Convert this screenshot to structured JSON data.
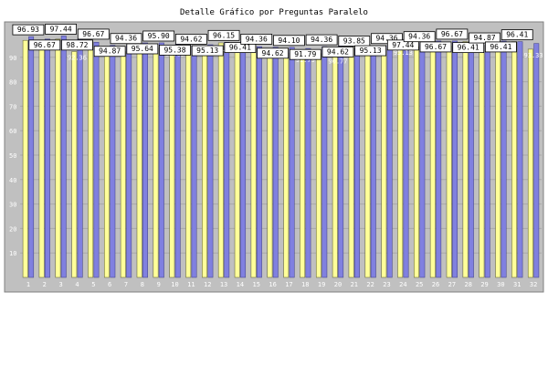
{
  "chart_data": {
    "type": "bar",
    "title": "Detalle Gráfico por Preguntas Paralelo",
    "xlabel": "",
    "ylabel": "",
    "ylim": [
      0,
      100
    ],
    "yticks": [
      10,
      20,
      30,
      40,
      50,
      60,
      70,
      80,
      90
    ],
    "grid": true,
    "legend": "none",
    "colors": {
      "background": "#c0c0c0",
      "bar_yellow": "#ffff99",
      "bar_blue": "#8080e0",
      "tick_text": "#ffffff",
      "label_box": "#ffffff",
      "label_text": "#000000"
    },
    "categories": [
      "1",
      "2",
      "3",
      "4",
      "5",
      "6",
      "7",
      "8",
      "9",
      "10",
      "11",
      "12",
      "13",
      "14",
      "15",
      "16",
      "17",
      "18",
      "19",
      "20",
      "21",
      "22",
      "23",
      "24",
      "25",
      "26",
      "27",
      "28",
      "29",
      "30",
      "31",
      "32"
    ],
    "series": [
      {
        "values": [
          96.93,
          96.67,
          97.44,
          92.36,
          96.67,
          94.36,
          92.31,
          95.64,
          93.85,
          93.85,
          94.62,
          92.56,
          95.9,
          93.85,
          94.62,
          91.79,
          91.79,
          91.36,
          91.54,
          90.77,
          93.85,
          95.13,
          93.33,
          94.36,
          94.36,
          96.67,
          94.62,
          96.41,
          94.87,
          94.62,
          96.41,
          93.33
        ]
      },
      {
        "values": [
          98.46,
          97.44,
          98.72,
          97.44,
          96.15,
          94.87,
          94.87,
          95.9,
          95.9,
          95.38,
          94.62,
          95.13,
          96.15,
          96.41,
          94.36,
          94.1,
          94.1,
          93.59,
          94.36,
          94.62,
          93.59,
          92.82,
          94.87,
          97.44,
          95.64,
          96.67,
          96.67,
          96.41,
          95.13,
          96.67,
          96.41,
          95.64
        ]
      }
    ],
    "data_labels": [
      {
        "text": "96.93"
      },
      {
        "text": "96.67"
      },
      {
        "text": "97.44"
      },
      {
        "text": "98.72"
      },
      {
        "text": "96.67"
      },
      {
        "text": "94.87"
      },
      {
        "text": "94.36"
      },
      {
        "text": "95.64"
      },
      {
        "text": "95.90"
      },
      {
        "text": "95.38"
      },
      {
        "text": "94.62"
      },
      {
        "text": "95.13"
      },
      {
        "text": "96.15"
      },
      {
        "text": "96.41"
      },
      {
        "text": "94.36"
      },
      {
        "text": "94.62"
      },
      {
        "text": "94.10"
      },
      {
        "text": "91.79"
      },
      {
        "text": "94.36"
      },
      {
        "text": "94.62"
      },
      {
        "text": "93.85"
      },
      {
        "text": "95.13"
      },
      {
        "text": "94.36"
      },
      {
        "text": "97.44"
      },
      {
        "text": "94.36"
      },
      {
        "text": "96.67"
      },
      {
        "text": "96.67"
      },
      {
        "text": "96.41"
      },
      {
        "text": "94.87"
      },
      {
        "text": "96.41"
      },
      {
        "text": "96.41"
      }
    ],
    "value_texts": [
      "92.36",
      "92.31",
      "93.85",
      "92.56",
      "91.79",
      "90.77",
      "93.33",
      "95.13",
      "93.33"
    ]
  }
}
